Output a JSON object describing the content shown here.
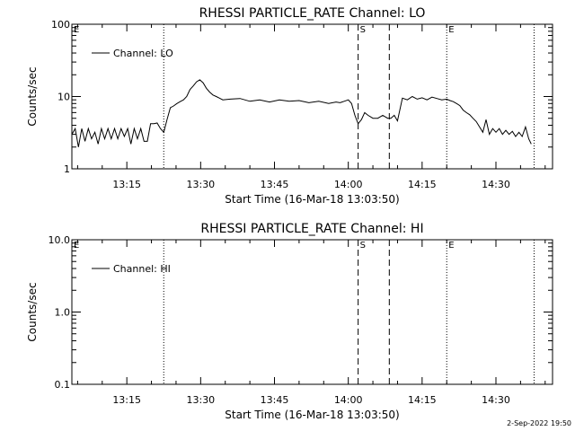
{
  "footer": {
    "timestamp": "2-Sep-2022 19:50"
  },
  "chart_data": [
    {
      "type": "line",
      "title": "RHESSI PARTICLE_RATE Channel: LO",
      "xlabel": "Start Time (16-Mar-18 13:03:50)",
      "ylabel": "Counts/sec",
      "yscale": "log",
      "ylim": [
        1,
        100
      ],
      "yticks": [
        1,
        10,
        100
      ],
      "ytick_labels": [
        "1",
        "10",
        "100"
      ],
      "xlim": [
        "13:03:50",
        "14:41:30"
      ],
      "xtick_labels": [
        "13:15",
        "13:30",
        "13:45",
        "14:00",
        "14:15",
        "14:30"
      ],
      "legend": "Channel: LO",
      "legend_position": "top-left",
      "grid": false,
      "series": [
        {
          "name": "Channel: LO",
          "x": [
            "13:03:50",
            "13:04:30",
            "13:05:10",
            "13:05:50",
            "13:06:30",
            "13:07:10",
            "13:07:50",
            "13:08:30",
            "13:09:10",
            "13:09:50",
            "13:10:30",
            "13:11:10",
            "13:11:50",
            "13:12:30",
            "13:13:10",
            "13:13:50",
            "13:14:30",
            "13:15:10",
            "13:15:50",
            "13:16:30",
            "13:17:10",
            "13:17:50",
            "13:18:30",
            "13:19:10",
            "13:19:50",
            "13:20:30",
            "13:21:10",
            "13:21:50",
            "13:22:30",
            "13:23:10",
            "13:23:50",
            "13:24:30",
            "13:25:10",
            "13:25:50",
            "13:26:30",
            "13:27:10",
            "13:27:50",
            "13:28:30",
            "13:29:10",
            "13:29:50",
            "13:30:30",
            "13:31:10",
            "13:31:50",
            "13:32:30",
            "13:33:10",
            "13:33:50",
            "13:34:30",
            "13:36:00",
            "13:38:00",
            "13:40:00",
            "13:42:00",
            "13:44:00",
            "13:46:00",
            "13:48:00",
            "13:50:00",
            "13:52:00",
            "13:54:00",
            "13:56:00",
            "13:57:30",
            "13:58:20",
            "13:59:10",
            "14:00:00",
            "14:00:40",
            "14:01:20",
            "14:02:00",
            "14:02:40",
            "14:03:20",
            "14:04:00",
            "14:05:00",
            "14:06:00",
            "14:07:00",
            "14:08:00",
            "14:08:40",
            "14:09:20",
            "14:10:00",
            "14:11:00",
            "14:12:00",
            "14:13:00",
            "14:14:00",
            "14:15:00",
            "14:16:00",
            "14:17:00",
            "14:18:00",
            "14:19:00",
            "14:20:00",
            "14:20:40",
            "14:21:20",
            "14:22:00",
            "14:22:40",
            "14:23:20",
            "14:24:00",
            "14:24:40",
            "14:25:20",
            "14:26:00",
            "14:26:40",
            "14:27:20",
            "14:28:00",
            "14:28:40",
            "14:29:20",
            "14:30:00",
            "14:30:40",
            "14:31:20",
            "14:32:00",
            "14:32:40",
            "14:33:20",
            "14:34:00",
            "14:34:40",
            "14:35:20",
            "14:36:00",
            "14:36:40",
            "14:37:10"
          ],
          "y": [
            3.0,
            3.6,
            2.0,
            3.6,
            2.4,
            3.6,
            2.6,
            3.2,
            2.2,
            3.6,
            2.6,
            3.6,
            2.6,
            3.6,
            2.6,
            3.6,
            2.8,
            3.6,
            2.2,
            3.6,
            2.6,
            3.6,
            2.4,
            2.4,
            4.2,
            4.2,
            4.3,
            3.6,
            3.2,
            4.8,
            7.0,
            7.4,
            8.0,
            8.5,
            9.0,
            10.0,
            12.5,
            14.0,
            16.0,
            17.0,
            15.5,
            13.0,
            11.5,
            10.5,
            10.0,
            9.5,
            9.0,
            9.2,
            9.4,
            8.6,
            9.0,
            8.4,
            9.0,
            8.6,
            8.8,
            8.2,
            8.6,
            8.0,
            8.4,
            8.2,
            8.6,
            9.0,
            8.0,
            5.5,
            4.2,
            4.8,
            6.0,
            5.5,
            5.0,
            5.0,
            5.5,
            5.0,
            5.0,
            5.5,
            4.6,
            9.5,
            9.0,
            10.0,
            9.2,
            9.6,
            9.0,
            9.8,
            9.4,
            9.0,
            9.2,
            8.8,
            8.5,
            8.0,
            7.5,
            6.5,
            6.0,
            5.6,
            5.0,
            4.5,
            3.8,
            3.2,
            4.8,
            3.0,
            3.6,
            3.2,
            3.6,
            3.0,
            3.4,
            3.0,
            3.3,
            2.8,
            3.2,
            2.8,
            3.8,
            2.6,
            2.2
          ]
        }
      ],
      "markers": [
        {
          "time": "13:22:30",
          "style": "dotted",
          "label": ""
        },
        {
          "time": "14:02:00",
          "style": "dashed",
          "label": "S"
        },
        {
          "time": "14:08:20",
          "style": "dashed",
          "label": ""
        },
        {
          "time": "14:20:00",
          "style": "dotted",
          "label": "E"
        },
        {
          "time": "14:37:45",
          "style": "dotted",
          "label": ""
        }
      ],
      "corner_label": "E"
    },
    {
      "type": "line",
      "title": "RHESSI PARTICLE_RATE Channel: HI",
      "xlabel": "Start Time (16-Mar-18 13:03:50)",
      "ylabel": "Counts/sec",
      "yscale": "log",
      "ylim": [
        0.1,
        10
      ],
      "yticks": [
        0.1,
        1,
        10
      ],
      "ytick_labels": [
        "0.1",
        "1.0",
        "10.0"
      ],
      "xlim": [
        "13:03:50",
        "14:41:30"
      ],
      "xtick_labels": [
        "13:15",
        "13:30",
        "13:45",
        "14:00",
        "14:15",
        "14:30"
      ],
      "legend": "Channel: HI",
      "legend_position": "top-left",
      "grid": false,
      "series": [
        {
          "name": "Channel: HI",
          "x": [],
          "y": []
        }
      ],
      "markers": [
        {
          "time": "13:22:30",
          "style": "dotted",
          "label": ""
        },
        {
          "time": "14:02:00",
          "style": "dashed",
          "label": "S"
        },
        {
          "time": "14:08:20",
          "style": "dashed",
          "label": ""
        },
        {
          "time": "14:20:00",
          "style": "dotted",
          "label": "E"
        },
        {
          "time": "14:37:45",
          "style": "dotted",
          "label": ""
        }
      ],
      "corner_label": "E"
    }
  ]
}
